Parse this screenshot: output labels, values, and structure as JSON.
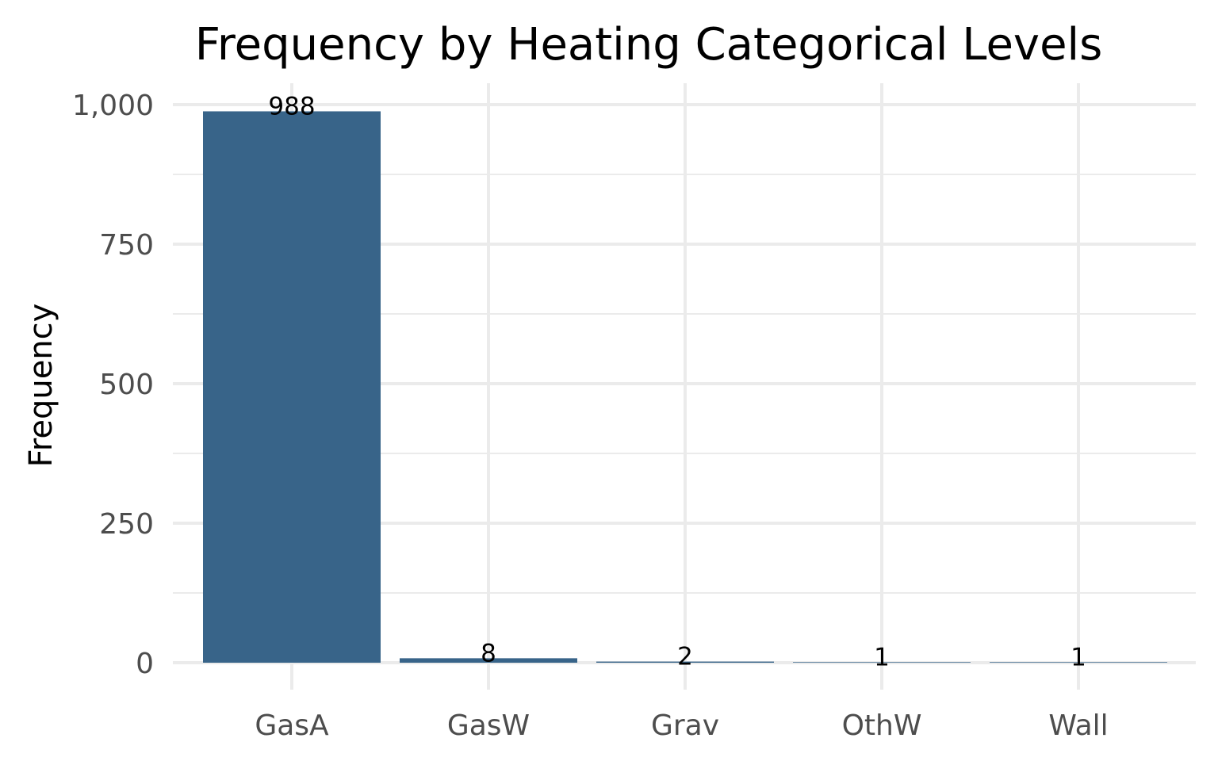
{
  "chart_data": {
    "type": "bar",
    "title": "Frequency by Heating Categorical Levels",
    "xlabel": "",
    "ylabel": "Frequency",
    "categories": [
      "GasA",
      "GasW",
      "Grav",
      "OthW",
      "Wall"
    ],
    "values": [
      988,
      8,
      2,
      1,
      1
    ],
    "data_labels": [
      "988",
      "8",
      "2",
      "1",
      "1"
    ],
    "y_ticks": [
      0,
      250,
      500,
      750,
      1000
    ],
    "y_tick_labels": [
      "0",
      "250",
      "500",
      "750",
      "1,000"
    ],
    "ylim": [
      0,
      1000
    ],
    "grid": true,
    "legend": "none",
    "bar_color": "#386489",
    "grid_color": "#ebebeb"
  }
}
